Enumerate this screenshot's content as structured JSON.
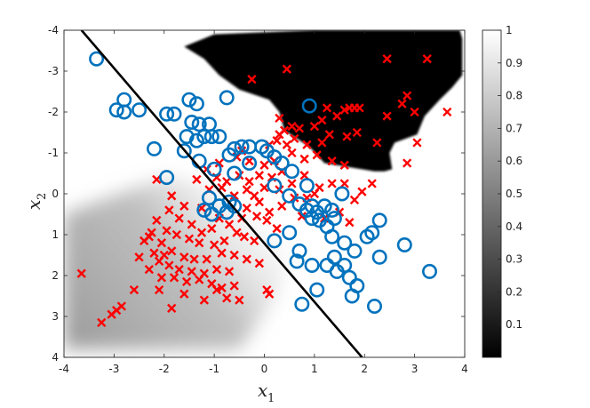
{
  "chart_data": {
    "type": "scatter",
    "title": "",
    "xlabel": "x",
    "xlabel_sub": "1",
    "ylabel": "x",
    "ylabel_sub": "2",
    "xlim": [
      -4,
      4
    ],
    "ylim": [
      -4,
      4
    ],
    "y_reversed": true,
    "grid": false,
    "xticks": [
      -4,
      -3,
      -2,
      -1,
      0,
      1,
      2,
      3,
      4
    ],
    "yticks": [
      -4,
      -3,
      -2,
      -1,
      0,
      1,
      2,
      3,
      4
    ],
    "colorbar": {
      "range": [
        0,
        1
      ],
      "colormap": "gray",
      "ticks": [
        0.1,
        0.2,
        0.3,
        0.4,
        0.5,
        0.6,
        0.7,
        0.8,
        0.9,
        1
      ]
    },
    "decision_line": {
      "points": [
        [
          -3.65,
          -4.0
        ],
        [
          1.95,
          4.0
        ]
      ],
      "color": "#000000"
    },
    "background_regions": [
      {
        "name": "black-region",
        "value": 0.0,
        "polygon": [
          [
            -1.6,
            -3.6
          ],
          [
            -1.0,
            -3.9
          ],
          [
            1.0,
            -4.0
          ],
          [
            3.9,
            -4.0
          ],
          [
            3.95,
            -3.8
          ],
          [
            3.95,
            -2.9
          ],
          [
            3.75,
            -2.6
          ],
          [
            3.5,
            -2.3
          ],
          [
            3.2,
            -1.9
          ],
          [
            3.05,
            -1.45
          ],
          [
            2.6,
            -1.25
          ],
          [
            2.5,
            -1.0
          ],
          [
            2.55,
            -0.6
          ],
          [
            2.4,
            -0.55
          ],
          [
            2.2,
            -0.55
          ],
          [
            1.2,
            -0.75
          ],
          [
            0.9,
            -1.15
          ],
          [
            0.4,
            -1.55
          ],
          [
            0.3,
            -2.0
          ],
          [
            0.1,
            -2.3
          ],
          [
            -0.5,
            -2.55
          ],
          [
            -0.9,
            -2.9
          ],
          [
            -1.2,
            -3.3
          ]
        ]
      },
      {
        "name": "gray-band",
        "value": 0.5,
        "polygon": [
          [
            -4.0,
            0.5
          ],
          [
            -2.0,
            -0.4
          ],
          [
            -1.3,
            -0.3
          ],
          [
            0.2,
            1.0
          ],
          [
            0.5,
            1.6
          ],
          [
            0.3,
            2.4
          ],
          [
            -0.5,
            3.8
          ],
          [
            -4.0,
            3.8
          ]
        ]
      }
    ],
    "series": [
      {
        "marker": "o",
        "color": "#0072BD",
        "points": [
          [
            -3.35,
            -3.3
          ],
          [
            -2.8,
            -2.3
          ],
          [
            -2.95,
            -2.05
          ],
          [
            -2.8,
            -2.0
          ],
          [
            -2.5,
            -2.05
          ],
          [
            -1.95,
            -1.95
          ],
          [
            -1.8,
            -1.95
          ],
          [
            -1.5,
            -2.3
          ],
          [
            -1.35,
            -2.2
          ],
          [
            -1.45,
            -1.75
          ],
          [
            -1.3,
            -1.7
          ],
          [
            -1.1,
            -1.7
          ],
          [
            -0.75,
            -2.35
          ],
          [
            -1.55,
            -1.4
          ],
          [
            -1.35,
            -1.3
          ],
          [
            -1.2,
            -1.4
          ],
          [
            -1.05,
            -1.4
          ],
          [
            -0.9,
            -1.4
          ],
          [
            -0.6,
            -1.1
          ],
          [
            -0.45,
            -1.15
          ],
          [
            -0.3,
            -1.15
          ],
          [
            -0.05,
            -1.15
          ],
          [
            0.05,
            -1.05
          ],
          [
            0.2,
            -0.9
          ],
          [
            0.35,
            -0.75
          ],
          [
            -2.2,
            -1.1
          ],
          [
            -1.6,
            -1.05
          ],
          [
            -1.3,
            -0.8
          ],
          [
            -1.0,
            -0.6
          ],
          [
            -0.7,
            -0.95
          ],
          [
            -0.3,
            -0.75
          ],
          [
            -0.6,
            -0.5
          ],
          [
            -1.95,
            -0.4
          ],
          [
            -1.1,
            0.1
          ],
          [
            -0.9,
            0.3
          ],
          [
            -0.75,
            0.45
          ],
          [
            -0.6,
            0.3
          ],
          [
            -1.05,
            0.5
          ],
          [
            -1.2,
            0.4
          ],
          [
            -0.7,
            0.2
          ],
          [
            0.9,
            -2.15
          ],
          [
            0.55,
            -0.55
          ],
          [
            0.85,
            -0.2
          ],
          [
            0.2,
            -0.2
          ],
          [
            0.5,
            0.05
          ],
          [
            0.7,
            0.25
          ],
          [
            0.85,
            0.4
          ],
          [
            0.95,
            0.3
          ],
          [
            1.05,
            0.45
          ],
          [
            1.2,
            0.3
          ],
          [
            1.35,
            0.4
          ],
          [
            1.55,
            0.0
          ],
          [
            1.4,
            0.6
          ],
          [
            1.25,
            0.8
          ],
          [
            1.1,
            0.65
          ],
          [
            0.95,
            0.6
          ],
          [
            0.5,
            0.95
          ],
          [
            1.35,
            1.05
          ],
          [
            1.6,
            1.2
          ],
          [
            1.8,
            1.4
          ],
          [
            1.4,
            1.55
          ],
          [
            1.25,
            1.75
          ],
          [
            1.6,
            1.75
          ],
          [
            1.45,
            1.9
          ],
          [
            1.7,
            2.05
          ],
          [
            1.85,
            2.25
          ],
          [
            2.05,
            1.05
          ],
          [
            2.3,
            0.65
          ],
          [
            2.15,
            0.95
          ],
          [
            2.3,
            1.55
          ],
          [
            2.8,
            1.25
          ],
          [
            2.2,
            2.75
          ],
          [
            1.75,
            2.5
          ],
          [
            1.05,
            2.35
          ],
          [
            0.95,
            1.75
          ],
          [
            0.75,
            2.7
          ],
          [
            0.65,
            1.65
          ],
          [
            0.2,
            1.15
          ],
          [
            0.7,
            1.4
          ],
          [
            3.3,
            1.9
          ]
        ]
      },
      {
        "marker": "x",
        "color": "#FF0000",
        "points": [
          [
            -0.25,
            -2.8
          ],
          [
            0.45,
            -3.05
          ],
          [
            2.45,
            -3.3
          ],
          [
            3.25,
            -3.3
          ],
          [
            2.85,
            -2.4
          ],
          [
            3.65,
            -2.0
          ],
          [
            2.75,
            -2.2
          ],
          [
            3.0,
            -2.0
          ],
          [
            2.45,
            -1.9
          ],
          [
            2.25,
            -1.25
          ],
          [
            3.05,
            -1.25
          ],
          [
            2.85,
            -0.75
          ],
          [
            1.25,
            -2.1
          ],
          [
            1.6,
            -2.05
          ],
          [
            1.7,
            -2.1
          ],
          [
            1.8,
            -2.1
          ],
          [
            1.9,
            -2.1
          ],
          [
            1.45,
            -1.9
          ],
          [
            1.15,
            -1.8
          ],
          [
            1.0,
            -1.65
          ],
          [
            0.55,
            -1.65
          ],
          [
            0.3,
            -1.85
          ],
          [
            0.4,
            -1.55
          ],
          [
            0.7,
            -1.6
          ],
          [
            1.85,
            -1.5
          ],
          [
            1.65,
            -1.4
          ],
          [
            1.3,
            -1.45
          ],
          [
            1.15,
            -1.25
          ],
          [
            0.85,
            -1.2
          ],
          [
            0.6,
            -1.35
          ],
          [
            0.45,
            -1.2
          ],
          [
            0.25,
            -1.3
          ],
          [
            0.1,
            -1.2
          ],
          [
            0.55,
            -1.0
          ],
          [
            0.8,
            -0.85
          ],
          [
            1.05,
            -0.95
          ],
          [
            1.35,
            -0.8
          ],
          [
            1.6,
            -0.7
          ],
          [
            0.2,
            -0.8
          ],
          [
            0.0,
            -0.7
          ],
          [
            -0.3,
            -0.8
          ],
          [
            -0.55,
            -0.9
          ],
          [
            -0.9,
            -0.75
          ],
          [
            -1.15,
            -0.6
          ],
          [
            -0.95,
            -0.4
          ],
          [
            -0.75,
            -0.3
          ],
          [
            -0.5,
            -0.45
          ],
          [
            -0.3,
            -0.3
          ],
          [
            -0.1,
            -0.45
          ],
          [
            0.15,
            -0.4
          ],
          [
            0.35,
            -0.55
          ],
          [
            0.55,
            -0.25
          ],
          [
            0.3,
            -0.1
          ],
          [
            0.0,
            -0.15
          ],
          [
            -0.2,
            0.05
          ],
          [
            -0.35,
            -0.1
          ],
          [
            -0.6,
            0.05
          ],
          [
            -0.85,
            -0.15
          ],
          [
            -1.1,
            -0.1
          ],
          [
            1.6,
            -0.25
          ],
          [
            1.95,
            -0.05
          ],
          [
            2.15,
            -0.25
          ],
          [
            1.8,
            0.15
          ],
          [
            1.1,
            -0.15
          ],
          [
            0.85,
            0.1
          ],
          [
            1.0,
            0.0
          ],
          [
            0.6,
            0.1
          ],
          [
            0.35,
            0.3
          ],
          [
            0.1,
            0.45
          ],
          [
            -0.1,
            0.2
          ],
          [
            -0.35,
            0.35
          ],
          [
            -0.15,
            0.55
          ],
          [
            0.05,
            0.65
          ],
          [
            0.25,
            0.85
          ],
          [
            -0.45,
            0.6
          ],
          [
            -0.7,
            0.75
          ],
          [
            -0.9,
            0.6
          ],
          [
            -0.55,
            0.95
          ],
          [
            -0.4,
            1.05
          ],
          [
            -0.2,
            1.15
          ],
          [
            -1.05,
            0.85
          ],
          [
            -1.25,
            0.95
          ],
          [
            -1.45,
            0.75
          ],
          [
            -1.7,
            0.6
          ],
          [
            -1.9,
            0.4
          ],
          [
            -2.15,
            0.65
          ],
          [
            -2.25,
            0.95
          ],
          [
            -1.95,
            0.9
          ],
          [
            -1.75,
            1.0
          ],
          [
            -1.5,
            1.1
          ],
          [
            -1.3,
            1.2
          ],
          [
            -1.0,
            1.25
          ],
          [
            -0.8,
            1.15
          ],
          [
            -2.4,
            1.15
          ],
          [
            -2.2,
            1.45
          ],
          [
            -2.0,
            1.5
          ],
          [
            -1.85,
            1.4
          ],
          [
            -1.6,
            1.55
          ],
          [
            -1.4,
            1.6
          ],
          [
            -1.15,
            1.6
          ],
          [
            -0.85,
            1.45
          ],
          [
            -0.6,
            1.5
          ],
          [
            -0.35,
            1.6
          ],
          [
            -0.1,
            1.7
          ],
          [
            -2.5,
            1.55
          ],
          [
            -2.1,
            1.65
          ],
          [
            -1.9,
            1.75
          ],
          [
            -1.7,
            1.85
          ],
          [
            -1.45,
            1.9
          ],
          [
            -1.2,
            1.95
          ],
          [
            -0.95,
            1.85
          ],
          [
            -0.7,
            1.9
          ],
          [
            -2.3,
            1.85
          ],
          [
            -2.05,
            2.05
          ],
          [
            -1.8,
            2.05
          ],
          [
            -1.55,
            2.15
          ],
          [
            -1.3,
            2.1
          ],
          [
            -1.05,
            2.2
          ],
          [
            -0.85,
            2.3
          ],
          [
            -0.6,
            2.25
          ],
          [
            -2.1,
            2.35
          ],
          [
            -1.6,
            2.45
          ],
          [
            -1.2,
            2.6
          ],
          [
            -0.75,
            2.55
          ],
          [
            -0.5,
            2.6
          ],
          [
            -2.6,
            2.35
          ],
          [
            -2.85,
            2.75
          ],
          [
            -2.95,
            2.85
          ],
          [
            -3.05,
            2.95
          ],
          [
            -3.25,
            3.15
          ],
          [
            -3.65,
            1.95
          ],
          [
            -1.85,
            2.8
          ],
          [
            0.05,
            2.35
          ],
          [
            0.1,
            2.45
          ],
          [
            -0.95,
            2.35
          ],
          [
            -2.3,
            1.05
          ],
          [
            -2.05,
            1.2
          ],
          [
            -1.25,
            0.35
          ],
          [
            -1.6,
            0.3
          ],
          [
            -1.85,
            0.05
          ],
          [
            -0.45,
            -1.05
          ],
          [
            -1.35,
            -0.35
          ],
          [
            -2.15,
            -0.35
          ],
          [
            0.3,
            -1.45
          ],
          [
            0.8,
            -0.45
          ],
          [
            1.35,
            -0.25
          ],
          [
            1.5,
            0.45
          ],
          [
            1.7,
            0.7
          ],
          [
            1.2,
            0.6
          ],
          [
            0.75,
            0.55
          ]
        ]
      }
    ]
  }
}
